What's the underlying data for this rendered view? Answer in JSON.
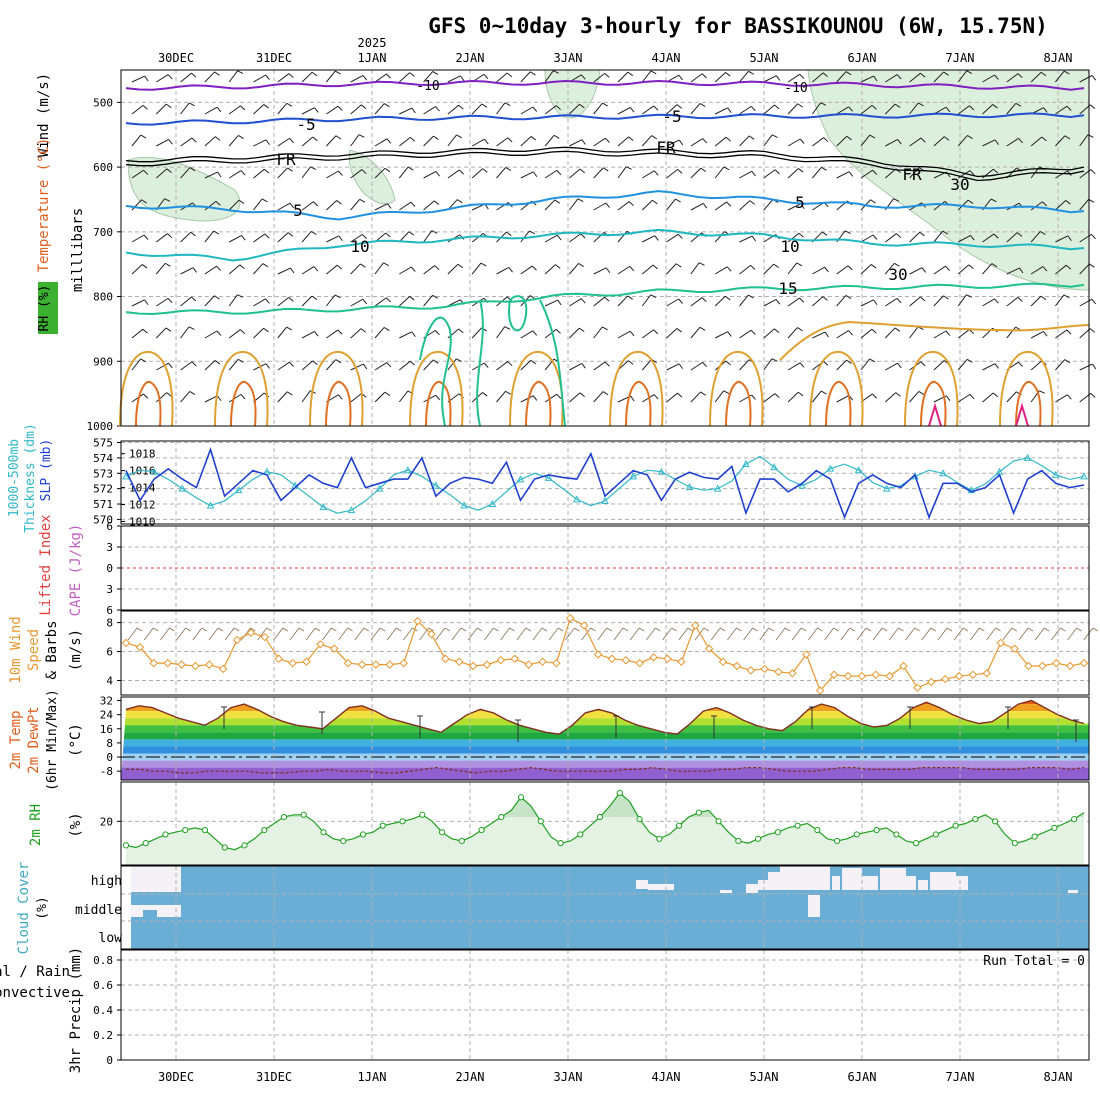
{
  "title": "GFS 0~10day 3-hourly for BASSIKOUNOU (6W, 15.75N)",
  "year_label": "2025",
  "run_total": "Run Total = 0",
  "colors": {
    "wind_label": "#000000",
    "temp_label": "#e06020",
    "temp_label_c": "#c00000",
    "rh_box": "#3cb030",
    "thick": "#30b8c8",
    "slp": "#2040d0",
    "lifted": "#e04040",
    "cape": "#c060c0",
    "wind10": "#e89830",
    "green": "#20a020",
    "cloud": "#6aaed6",
    "cloud_label": "#40a8c0",
    "precip_total": "#20a020",
    "precip_conv": "#e02020",
    "iso_m10": "#8020c0",
    "iso_m5": "#2050d0",
    "iso_5": "#2090e0",
    "iso_10": "#20b8c0",
    "iso_15": "#20c090",
    "iso_20": "#e0a030",
    "iso_25": "#e07020",
    "iso_30": "#e02080"
  },
  "chart_data": [
    {
      "type": "contour",
      "panel": "upper-air",
      "ylabel": "milllibars",
      "side_labels": [
        "Wind (m/s)",
        "Temperature (°C)",
        "RH (%)"
      ],
      "y_ticks": [
        500,
        600,
        700,
        800,
        900,
        1000
      ],
      "ylim": [
        450,
        1000
      ],
      "x_dates": [
        "30DEC",
        "31DEC",
        "1JAN",
        "2JAN",
        "3JAN",
        "4JAN",
        "5JAN",
        "6JAN",
        "7JAN",
        "8JAN"
      ],
      "isotherms": [
        {
          "label": "-10",
          "pressure": [
            478,
            476,
            472,
            470,
            470,
            470,
            471,
            473,
            476,
            478
          ]
        },
        {
          "label": "-5",
          "pressure": [
            532,
            530,
            526,
            524,
            523,
            522,
            521,
            521,
            520,
            520
          ]
        },
        {
          "label": "FR",
          "pressure": [
            590,
            585,
            580,
            575,
            572,
            575,
            578,
            590,
            612,
            600
          ]
        },
        {
          "label": "5",
          "pressure": [
            660,
            665,
            678,
            665,
            650,
            640,
            650,
            660,
            660,
            668
          ]
        },
        {
          "label": "10",
          "pressure": [
            732,
            742,
            720,
            712,
            705,
            700,
            706,
            718,
            720,
            725
          ]
        },
        {
          "label": "15",
          "pressure": [
            824,
            824,
            820,
            815,
            800,
            792,
            788,
            786,
            784,
            782
          ]
        }
      ],
      "contour_labels": [
        "-10",
        "-5",
        "FR",
        "5",
        "10",
        "15",
        "10",
        "30",
        "30"
      ]
    },
    {
      "type": "line",
      "panel": "thickness-slp",
      "ylabel_left": "1000-500mb Thickness (dm)",
      "ylabel_right": "SLP (mb)",
      "y_ticks_left": [
        570,
        571,
        572,
        573,
        574,
        575
      ],
      "y_ticks_right": [
        1010,
        1012,
        1014,
        1016,
        1018
      ],
      "series": [
        {
          "name": "Thickness",
          "axis": "left",
          "values": [
            572.8,
            573.2,
            573.1,
            572.6,
            572.0,
            571.4,
            570.9,
            571.2,
            571.9,
            572.6,
            573.1,
            572.9,
            572.2,
            571.5,
            570.8,
            570.4,
            570.6,
            571.2,
            572.0,
            572.9,
            573.2,
            572.8,
            572.2,
            571.6,
            570.9,
            570.6,
            571.0,
            571.8,
            572.6,
            573.0,
            572.7,
            572.0,
            571.3,
            570.9,
            571.2,
            572.0,
            572.8,
            573.2,
            573.1,
            572.6,
            572.1,
            571.9,
            572.0,
            572.5,
            573.6,
            574.1,
            573.4,
            572.6,
            572.2,
            572.6,
            573.3,
            573.6,
            573.2,
            572.4,
            572.0,
            572.2,
            572.8,
            573.2,
            573.0,
            572.4,
            571.9,
            572.3,
            573.1,
            573.8,
            574.0,
            573.5,
            572.9,
            572.6,
            572.8
          ]
        },
        {
          "name": "SLP",
          "axis": "right",
          "values": [
            1016.0,
            1012.5,
            1015.0,
            1016.2,
            1015.0,
            1014.0,
            1018.5,
            1013.0,
            1014.5,
            1016.0,
            1015.5,
            1012.5,
            1014.0,
            1015.5,
            1014.5,
            1014.0,
            1017.5,
            1014.0,
            1014.5,
            1015.0,
            1015.0,
            1017.5,
            1013.0,
            1014.5,
            1015.2,
            1015.0,
            1014.5,
            1017.0,
            1012.5,
            1015.0,
            1015.5,
            1015.2,
            1015.0,
            1018.0,
            1013.0,
            1014.5,
            1016.0,
            1015.5,
            1012.5,
            1015.0,
            1015.8,
            1015.2,
            1015.0,
            1016.5,
            1011.0,
            1015.0,
            1015.0,
            1013.5,
            1014.5,
            1016.0,
            1015.0,
            1010.5,
            1014.5,
            1015.5,
            1014.5,
            1014.0,
            1015.5,
            1010.5,
            1014.5,
            1014.5,
            1013.5,
            1014.0,
            1015.5,
            1011.0,
            1015.0,
            1016.0,
            1014.5,
            1014.0,
            1014.3
          ]
        }
      ]
    },
    {
      "type": "line",
      "panel": "stability",
      "ylabel_left": "Lifted Index",
      "ylabel_right": "CAPE (J/kg)",
      "y_ticks": [
        6,
        3,
        0,
        -3,
        -6
      ],
      "series": [
        {
          "name": "Lifted Index",
          "values": []
        }
      ]
    },
    {
      "type": "line",
      "panel": "10m-wind",
      "ylabel": "10m Wind Speed & Barbs (m/s)",
      "y_ticks": [
        4,
        6,
        8
      ],
      "ylim": [
        3,
        8.8
      ],
      "series": [
        {
          "name": "Wind Speed",
          "values": [
            6.6,
            6.3,
            5.2,
            5.2,
            5.1,
            5.0,
            5.1,
            4.8,
            6.8,
            7.3,
            7.0,
            5.5,
            5.2,
            5.3,
            6.5,
            6.2,
            5.2,
            5.1,
            5.1,
            5.1,
            5.2,
            8.1,
            7.2,
            5.5,
            5.3,
            5.0,
            5.1,
            5.4,
            5.5,
            5.1,
            5.3,
            5.2,
            8.3,
            7.8,
            5.8,
            5.5,
            5.4,
            5.2,
            5.6,
            5.5,
            5.3,
            7.8,
            6.2,
            5.3,
            5.0,
            4.7,
            4.8,
            4.6,
            4.5,
            5.8,
            3.3,
            4.4,
            4.3,
            4.3,
            4.4,
            4.3,
            5.0,
            3.5,
            3.9,
            4.1,
            4.3,
            4.4,
            4.5,
            6.6,
            6.2,
            5.0,
            5.0,
            5.2,
            5.0,
            5.2
          ]
        }
      ]
    },
    {
      "type": "area",
      "panel": "2m-temp",
      "ylabel": "2m Temp 2m DewPt (6hr Min/Max) (°C)",
      "y_ticks": [
        32,
        24,
        16,
        8,
        0,
        -8
      ],
      "ylim": [
        -13,
        34
      ],
      "series": [
        {
          "name": "Temp",
          "values": [
            27,
            29,
            28,
            25,
            22,
            20,
            18,
            22,
            28,
            30,
            27,
            23,
            20,
            18,
            17,
            16,
            22,
            28,
            29,
            26,
            22,
            20,
            18,
            16,
            14,
            19,
            24,
            27,
            25,
            21,
            18,
            16,
            14,
            13,
            18,
            25,
            27,
            25,
            21,
            18,
            16,
            14,
            13,
            19,
            26,
            28,
            25,
            21,
            18,
            16,
            15,
            20,
            27,
            30,
            28,
            23,
            19,
            17,
            18,
            22,
            28,
            31,
            28,
            24,
            21,
            19,
            20,
            25,
            30,
            32,
            28,
            24,
            21,
            19
          ]
        },
        {
          "name": "DewPt",
          "values": [
            -7,
            -7,
            -8,
            -8,
            -9,
            -9,
            -8,
            -8,
            -8,
            -8,
            -9,
            -9,
            -9,
            -8,
            -8,
            -7,
            -8,
            -8,
            -8,
            -9,
            -9,
            -8,
            -7,
            -6,
            -7,
            -8,
            -9,
            -8,
            -8,
            -7,
            -6,
            -7,
            -8,
            -8,
            -8,
            -8,
            -8,
            -7,
            -7,
            -6,
            -7,
            -8,
            -8,
            -8,
            -7,
            -7,
            -6,
            -6,
            -7,
            -8,
            -8,
            -8,
            -7,
            -6,
            -6,
            -7,
            -7,
            -7,
            -7,
            -6,
            -6,
            -6,
            -6,
            -7,
            -7,
            -7,
            -7,
            -6,
            -6,
            -6,
            -7,
            -6
          ]
        }
      ]
    },
    {
      "type": "area",
      "panel": "2m-rh",
      "ylabel": "2m RH (%)",
      "y_ticks": [
        20
      ],
      "ylim": [
        0,
        38
      ],
      "series": [
        {
          "name": "RH",
          "values": [
            9,
            8,
            10,
            12,
            14,
            15,
            16,
            17,
            16,
            12,
            8,
            7,
            9,
            12,
            16,
            19,
            22,
            23,
            23,
            20,
            15,
            12,
            11,
            12,
            14,
            15,
            18,
            19,
            20,
            21,
            23,
            20,
            15,
            12,
            11,
            13,
            16,
            19,
            22,
            25,
            31,
            27,
            20,
            13,
            10,
            11,
            14,
            18,
            22,
            27,
            33,
            29,
            21,
            15,
            12,
            14,
            18,
            22,
            24,
            25,
            20,
            15,
            11,
            10,
            12,
            14,
            15,
            17,
            18,
            19,
            16,
            12,
            11,
            12,
            14,
            15,
            16,
            17,
            14,
            11,
            10,
            12,
            14,
            16,
            18,
            19,
            21,
            23,
            20,
            14,
            10,
            11,
            13,
            15,
            17,
            19,
            21,
            24
          ]
        }
      ]
    },
    {
      "type": "heatmap",
      "panel": "cloud-cover",
      "ylabel": "Cloud Cover (%)",
      "rows": [
        "high",
        "middle",
        "low"
      ]
    },
    {
      "type": "bar",
      "panel": "precip",
      "ylabel": "3hr Precip (mm)",
      "series_labels": [
        "Total / Rain",
        "Convective"
      ],
      "y_ticks": [
        0,
        0.2,
        0.4,
        0.6,
        0.8
      ],
      "ylim": [
        0,
        0.88
      ],
      "series": [
        {
          "name": "Total / Rain",
          "values": []
        }
      ]
    }
  ]
}
